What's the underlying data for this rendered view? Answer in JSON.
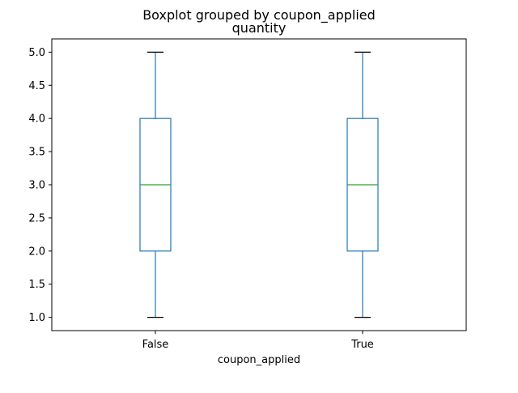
{
  "chart_data": {
    "type": "box",
    "suptitle": "Boxplot grouped by coupon_applied",
    "title": "quantity",
    "xlabel": "coupon_applied",
    "ylabel": "",
    "categories": [
      "False",
      "True"
    ],
    "ylim": [
      0.8,
      5.2
    ],
    "yticks": [
      1.0,
      1.5,
      2.0,
      2.5,
      3.0,
      3.5,
      4.0,
      4.5,
      5.0
    ],
    "ytick_labels": [
      "1.0",
      "1.5",
      "2.0",
      "2.5",
      "3.0",
      "3.5",
      "4.0",
      "4.5",
      "5.0"
    ],
    "grid": false,
    "boxes": [
      {
        "category": "False",
        "whisker_low": 1.0,
        "q1": 2.0,
        "median": 3.0,
        "q3": 4.0,
        "whisker_high": 5.0
      },
      {
        "category": "True",
        "whisker_low": 1.0,
        "q1": 2.0,
        "median": 3.0,
        "q3": 4.0,
        "whisker_high": 5.0
      }
    ],
    "colors": {
      "box": "#1f77b4",
      "whisker": "#1f77b4",
      "median": "#2ca02c",
      "caps": "#000000",
      "axes": "#000000"
    }
  }
}
